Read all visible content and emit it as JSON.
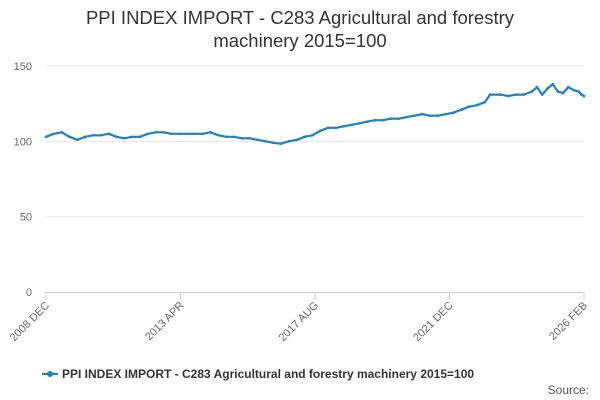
{
  "chart_data": {
    "type": "line",
    "title_line1": "PPI INDEX IMPORT - C283 Agricultural and forestry",
    "title_line2": "machinery 2015=100",
    "xlabel": "",
    "ylabel": "",
    "x_tick_labels": [
      "2008 DEC",
      "2013 APR",
      "2017 AUG",
      "2021 DEC",
      "2026 FEB"
    ],
    "y_tick_labels": [
      "0",
      "50",
      "100",
      "150"
    ],
    "ylim": [
      0,
      150
    ],
    "grid": true,
    "legend_position": "bottom",
    "source_label": "Source:",
    "series": [
      {
        "name": "PPI INDEX IMPORT - C283 Agricultural and forestry machinery 2015=100",
        "color": "#1f82c0",
        "points": [
          [
            "2008-12",
            103
          ],
          [
            "2009-03",
            105
          ],
          [
            "2009-06",
            106
          ],
          [
            "2009-09",
            103
          ],
          [
            "2009-12",
            101
          ],
          [
            "2010-03",
            103
          ],
          [
            "2010-06",
            104
          ],
          [
            "2010-09",
            104
          ],
          [
            "2010-12",
            105
          ],
          [
            "2011-03",
            103
          ],
          [
            "2011-06",
            102
          ],
          [
            "2011-09",
            103
          ],
          [
            "2011-12",
            103
          ],
          [
            "2012-03",
            105
          ],
          [
            "2012-06",
            106
          ],
          [
            "2012-09",
            106
          ],
          [
            "2012-12",
            105
          ],
          [
            "2013-03",
            105
          ],
          [
            "2013-06",
            105
          ],
          [
            "2013-09",
            105
          ],
          [
            "2013-12",
            105
          ],
          [
            "2014-03",
            106
          ],
          [
            "2014-06",
            104
          ],
          [
            "2014-09",
            103
          ],
          [
            "2014-12",
            103
          ],
          [
            "2015-03",
            102
          ],
          [
            "2015-06",
            102
          ],
          [
            "2015-09",
            101
          ],
          [
            "2015-12",
            100
          ],
          [
            "2016-03",
            99
          ],
          [
            "2016-06",
            98.5
          ],
          [
            "2016-09",
            100
          ],
          [
            "2016-12",
            101
          ],
          [
            "2017-03",
            103
          ],
          [
            "2017-06",
            104
          ],
          [
            "2017-09",
            107
          ],
          [
            "2017-12",
            109
          ],
          [
            "2018-03",
            109
          ],
          [
            "2018-06",
            110
          ],
          [
            "2018-09",
            111
          ],
          [
            "2018-12",
            112
          ],
          [
            "2019-03",
            113
          ],
          [
            "2019-06",
            114
          ],
          [
            "2019-09",
            114
          ],
          [
            "2019-12",
            115
          ],
          [
            "2020-03",
            115
          ],
          [
            "2020-06",
            116
          ],
          [
            "2020-09",
            117
          ],
          [
            "2020-12",
            118
          ],
          [
            "2021-03",
            117
          ],
          [
            "2021-06",
            117
          ],
          [
            "2021-09",
            118
          ],
          [
            "2021-12",
            119
          ],
          [
            "2022-03",
            121
          ],
          [
            "2022-06",
            123
          ],
          [
            "2022-09",
            124
          ],
          [
            "2022-12",
            126
          ],
          [
            "2023-02",
            131
          ],
          [
            "2023-06",
            131
          ],
          [
            "2023-09",
            130
          ],
          [
            "2023-12",
            131
          ],
          [
            "2024-03",
            131
          ],
          [
            "2024-06",
            133
          ],
          [
            "2024-08",
            136
          ],
          [
            "2024-10",
            131
          ],
          [
            "2024-12",
            135
          ],
          [
            "2025-02",
            138
          ],
          [
            "2025-04",
            133
          ],
          [
            "2025-06",
            132
          ],
          [
            "2025-08",
            136
          ],
          [
            "2025-10",
            134
          ],
          [
            "2025-12",
            133
          ],
          [
            "2026-01",
            131
          ],
          [
            "2026-02",
            130
          ]
        ]
      }
    ]
  }
}
